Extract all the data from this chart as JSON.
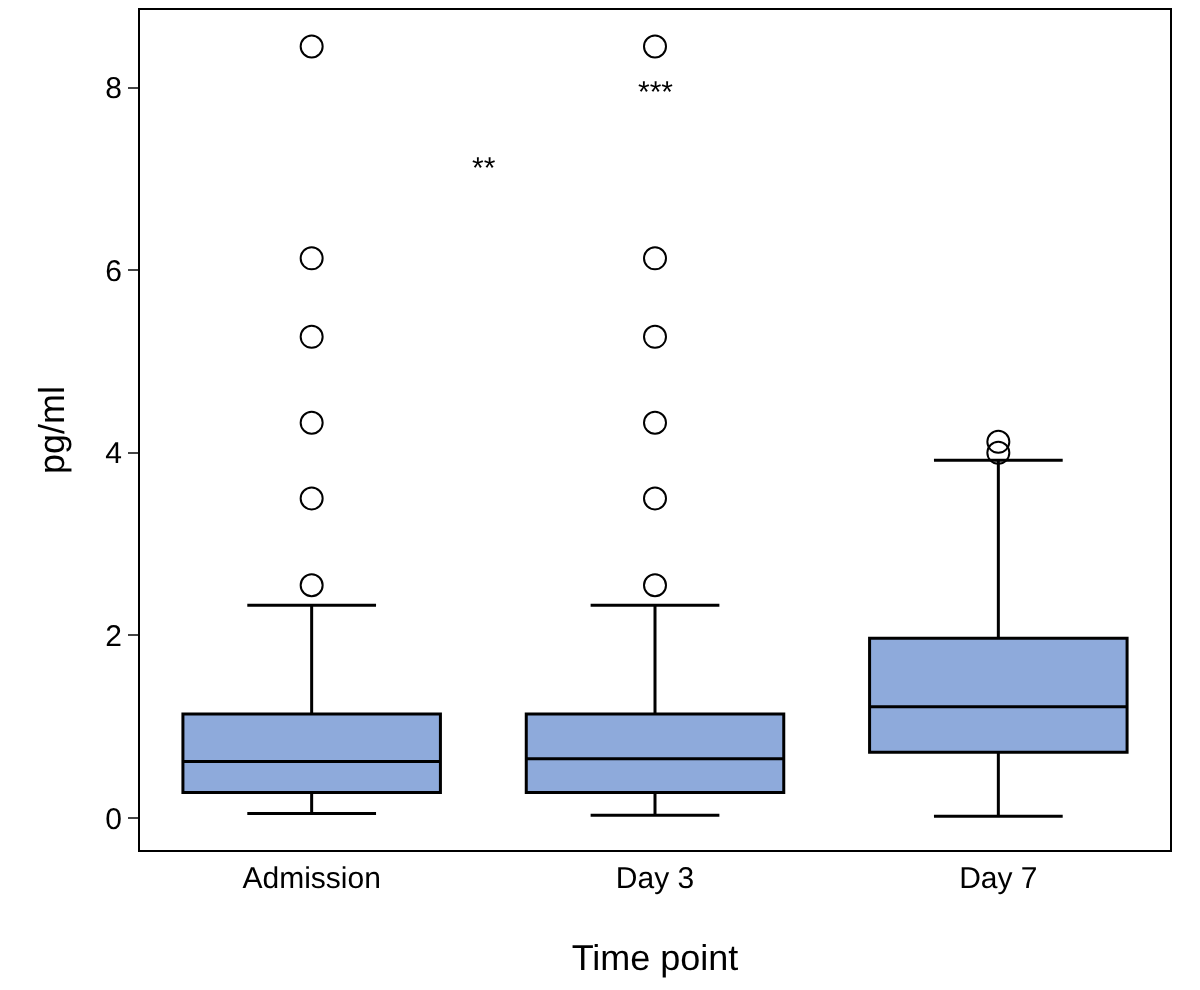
{
  "chart_data": {
    "type": "box",
    "xlabel": "Time point",
    "ylabel": "pg/ml",
    "categories": [
      "Admission",
      "Day 3",
      "Day 7"
    ],
    "boxes": [
      {
        "low": 0.05,
        "q1": 0.28,
        "median": 0.62,
        "q3": 1.14,
        "high": 2.33,
        "outliers": [
          2.55,
          3.5,
          4.33,
          5.27,
          6.13,
          8.45
        ]
      },
      {
        "low": 0.03,
        "q1": 0.28,
        "median": 0.65,
        "q3": 1.14,
        "high": 2.33,
        "outliers": [
          2.55,
          3.5,
          4.33,
          5.27,
          6.13,
          8.45
        ]
      },
      {
        "low": 0.02,
        "q1": 0.72,
        "median": 1.22,
        "q3": 1.97,
        "high": 3.92,
        "outliers": [
          4.0,
          4.12
        ]
      }
    ],
    "color": "#8eaadb",
    "ylim": [
      -0.35,
      8.85
    ],
    "yticks": [
      0,
      2,
      4,
      6,
      8
    ],
    "annotations": [
      "**",
      "***"
    ]
  }
}
